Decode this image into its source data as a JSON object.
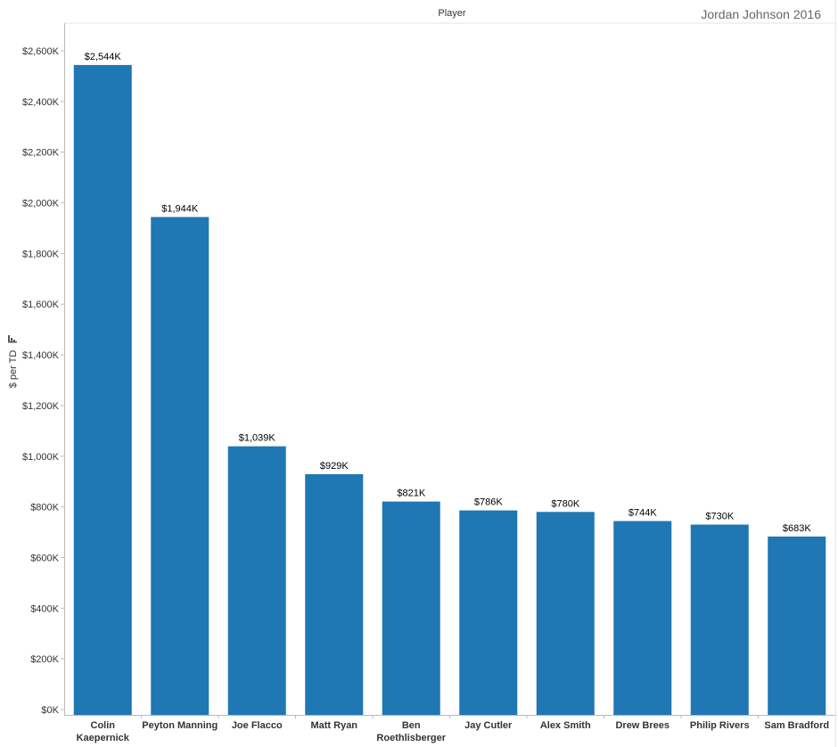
{
  "credit": "Jordan Johnson 2016",
  "colors": {
    "bar": "#1f77b4",
    "grid": "#e6e6e6",
    "axis": "#bbbbbb"
  },
  "chart_data": {
    "type": "bar",
    "title": "",
    "xlabel": "Player",
    "ylabel": "$ per TD",
    "ylim": [
      0,
      2700
    ],
    "yticks": [
      0,
      200,
      400,
      600,
      800,
      1000,
      1200,
      1400,
      1600,
      1800,
      2000,
      2200,
      2400,
      2600
    ],
    "ytick_labels": [
      "$0K",
      "$200K",
      "$400K",
      "$600K",
      "$800K",
      "$1,000K",
      "$1,200K",
      "$1,400K",
      "$1,600K",
      "$1,800K",
      "$2,000K",
      "$2,200K",
      "$2,400K",
      "$2,600K"
    ],
    "categories": [
      "Colin Kaepernick",
      "Peyton Manning",
      "Joe Flacco",
      "Matt Ryan",
      "Ben Roethlisberger",
      "Jay Cutler",
      "Alex Smith",
      "Drew Brees",
      "Philip Rivers",
      "Sam Bradford"
    ],
    "category_lines": [
      [
        "Colin",
        "Kaepernick"
      ],
      [
        "Peyton Manning"
      ],
      [
        "Joe Flacco"
      ],
      [
        "Matt Ryan"
      ],
      [
        "Ben",
        "Roethlisberger"
      ],
      [
        "Jay Cutler"
      ],
      [
        "Alex Smith"
      ],
      [
        "Drew Brees"
      ],
      [
        "Philip Rivers"
      ],
      [
        "Sam Bradford"
      ]
    ],
    "values": [
      2544,
      1944,
      1039,
      929,
      821,
      786,
      780,
      744,
      730,
      683
    ],
    "value_labels": [
      "$2,544K",
      "$1,944K",
      "$1,039K",
      "$929K",
      "$821K",
      "$786K",
      "$780K",
      "$744K",
      "$730K",
      "$683K"
    ],
    "value_units": "thousands of dollars"
  }
}
